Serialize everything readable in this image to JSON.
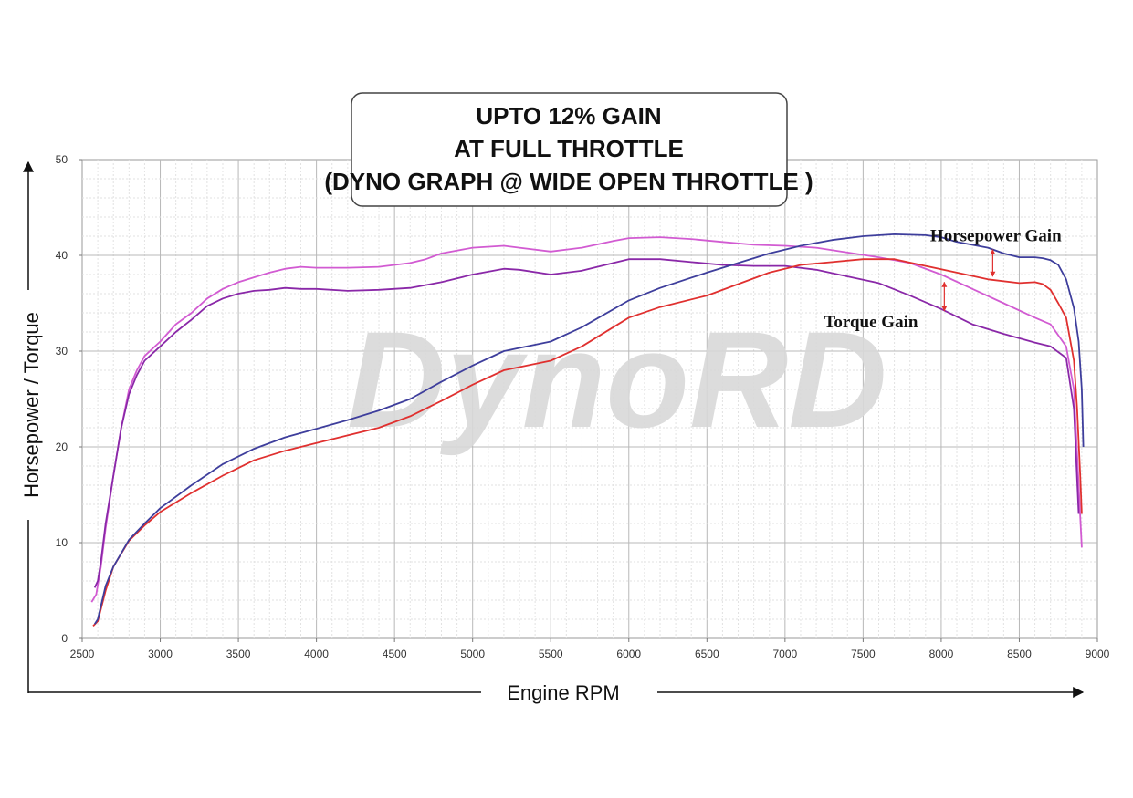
{
  "chart_data": {
    "type": "line",
    "title_lines": [
      "UPTO 12% GAIN",
      "AT FULL THROTTLE",
      "(DYNO GRAPH @ WIDE OPEN THROTTLE )"
    ],
    "xlabel": "Engine RPM",
    "ylabel": "Horsepower / Torque",
    "xlim": [
      2500,
      9000
    ],
    "ylim": [
      0,
      50
    ],
    "xticks": [
      2500,
      3000,
      3500,
      4000,
      4500,
      5000,
      5500,
      6000,
      6500,
      7000,
      7500,
      8000,
      8500,
      9000
    ],
    "yticks": [
      0,
      10,
      20,
      30,
      40,
      50
    ],
    "grid": true,
    "watermark": "DynoRD",
    "annotations": [
      {
        "text": "Horsepower Gain",
        "x": 8350,
        "y": 41.5
      },
      {
        "text": "Torque Gain",
        "x": 7550,
        "y": 32.5
      }
    ],
    "gain_markers": [
      {
        "x": 8330,
        "y_from": 37.8,
        "y_to": 40.6
      },
      {
        "x": 8020,
        "y_from": 34.2,
        "y_to": 37.2
      }
    ],
    "series": [
      {
        "color": "#d25bd2",
        "x": [
          2560,
          2590,
          2620,
          2650,
          2700,
          2750,
          2800,
          2850,
          2900,
          3000,
          3100,
          3200,
          3300,
          3400,
          3500,
          3600,
          3700,
          3800,
          3900,
          4000,
          4200,
          4400,
          4600,
          4700,
          4800,
          5000,
          5200,
          5300,
          5500,
          5700,
          5900,
          6000,
          6200,
          6400,
          6600,
          6800,
          7000,
          7200,
          7400,
          7600,
          7800,
          8000,
          8200,
          8400,
          8600,
          8700,
          8800,
          8850,
          8880,
          8900
        ],
        "values": [
          3.8,
          4.6,
          7.5,
          11.5,
          17,
          22,
          26,
          28,
          29.5,
          31,
          32.8,
          34,
          35.5,
          36.5,
          37.2,
          37.7,
          38.2,
          38.6,
          38.8,
          38.7,
          38.7,
          38.8,
          39.2,
          39.6,
          40.2,
          40.8,
          41,
          40.8,
          40.4,
          40.8,
          41.5,
          41.8,
          41.9,
          41.7,
          41.4,
          41.1,
          41.0,
          40.8,
          40.3,
          39.8,
          39.2,
          38.0,
          36.5,
          35.0,
          33.5,
          32.8,
          30.5,
          26,
          16,
          9.5
        ]
      },
      {
        "color": "#8a28a8",
        "x": [
          2580,
          2600,
          2620,
          2650,
          2700,
          2750,
          2800,
          2850,
          2900,
          3000,
          3100,
          3200,
          3300,
          3400,
          3500,
          3600,
          3700,
          3800,
          3900,
          4000,
          4200,
          4400,
          4600,
          4800,
          5000,
          5200,
          5300,
          5500,
          5700,
          5900,
          6000,
          6200,
          6400,
          6600,
          6800,
          7000,
          7200,
          7400,
          7600,
          7800,
          8000,
          8200,
          8400,
          8600,
          8700,
          8800,
          8850,
          8880
        ],
        "values": [
          5.3,
          6.0,
          8.0,
          12.0,
          17,
          22,
          25.5,
          27.5,
          29,
          30.5,
          32,
          33.3,
          34.7,
          35.5,
          36.0,
          36.3,
          36.4,
          36.6,
          36.5,
          36.5,
          36.3,
          36.4,
          36.6,
          37.2,
          38.0,
          38.6,
          38.5,
          38.0,
          38.4,
          39.2,
          39.6,
          39.6,
          39.3,
          39.0,
          38.9,
          38.9,
          38.5,
          37.8,
          37.1,
          35.8,
          34.4,
          32.8,
          31.8,
          30.9,
          30.5,
          29.3,
          24,
          13
        ]
      },
      {
        "color": "#e0302f",
        "x": [
          2570,
          2600,
          2650,
          2700,
          2800,
          2900,
          3000,
          3200,
          3400,
          3600,
          3800,
          4000,
          4200,
          4400,
          4600,
          4800,
          5000,
          5200,
          5500,
          5700,
          6000,
          6200,
          6500,
          6700,
          6900,
          7100,
          7300,
          7500,
          7700,
          7900,
          8100,
          8300,
          8500,
          8600,
          8650,
          8700,
          8750,
          8800,
          8850,
          8870,
          8890,
          8900
        ],
        "values": [
          1.3,
          1.8,
          5,
          7.5,
          10.2,
          11.8,
          13.2,
          15.2,
          17.0,
          18.6,
          19.6,
          20.4,
          21.2,
          22.0,
          23.2,
          24.8,
          26.5,
          28.0,
          29.0,
          30.5,
          33.5,
          34.6,
          35.8,
          37.0,
          38.2,
          39.0,
          39.3,
          39.6,
          39.6,
          38.9,
          38.2,
          37.5,
          37.1,
          37.2,
          37.0,
          36.4,
          35.0,
          33.5,
          29,
          24,
          17,
          13
        ]
      },
      {
        "color": "#3e3e9c",
        "x": [
          2580,
          2600,
          2650,
          2700,
          2800,
          2900,
          3000,
          3200,
          3400,
          3600,
          3800,
          4000,
          4200,
          4400,
          4600,
          4800,
          5000,
          5200,
          5500,
          5700,
          6000,
          6200,
          6500,
          6700,
          6900,
          7100,
          7300,
          7500,
          7700,
          7900,
          8000,
          8100,
          8300,
          8400,
          8500,
          8600,
          8650,
          8700,
          8750,
          8800,
          8850,
          8880,
          8900,
          8910
        ],
        "values": [
          1.5,
          2.0,
          5.5,
          7.5,
          10.3,
          12.0,
          13.6,
          16.0,
          18.2,
          19.8,
          21.0,
          21.9,
          22.8,
          23.8,
          25.0,
          26.8,
          28.5,
          30.0,
          31.0,
          32.5,
          35.3,
          36.6,
          38.2,
          39.2,
          40.2,
          41.0,
          41.6,
          42.0,
          42.2,
          42.1,
          41.9,
          41.4,
          40.8,
          40.2,
          39.8,
          39.8,
          39.7,
          39.5,
          39.0,
          37.5,
          34.5,
          31,
          26,
          20
        ]
      }
    ]
  }
}
